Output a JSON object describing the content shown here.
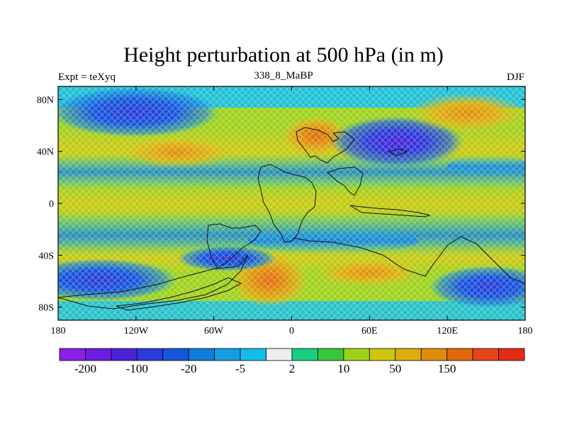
{
  "title": "Height perturbation at 500 hPa (in m)",
  "experiment_label": "Expt = teXyq",
  "case_label": "338_8_MaBP",
  "season_label": "DJF",
  "map": {
    "projection": "cylindrical-equidistant",
    "lon_range": [
      -180,
      180
    ],
    "lat_range": [
      -90,
      90
    ],
    "lon_ticks": [
      {
        "value": -180,
        "label": "180"
      },
      {
        "value": -120,
        "label": "120W"
      },
      {
        "value": -60,
        "label": "60W"
      },
      {
        "value": 0,
        "label": "0"
      },
      {
        "value": 60,
        "label": "60E"
      },
      {
        "value": 120,
        "label": "120E"
      },
      {
        "value": 180,
        "label": "180"
      }
    ],
    "lat_ticks": [
      {
        "value": 80,
        "label": "80N"
      },
      {
        "value": 40,
        "label": "40N"
      },
      {
        "value": 0,
        "label": "0"
      },
      {
        "value": -40,
        "label": "40S"
      },
      {
        "value": -80,
        "label": "80S"
      }
    ],
    "features": [
      {
        "name": "north-pacific-trough",
        "kind": "negative",
        "lon": -140,
        "lat": 62,
        "approx_value": -100
      },
      {
        "name": "asia-trough",
        "kind": "negative",
        "lon": 85,
        "lat": 45,
        "approx_value": -200
      },
      {
        "name": "europe-ridge",
        "kind": "positive",
        "lon": 15,
        "lat": 52,
        "approx_value": 150
      },
      {
        "name": "north-pacific-ridge",
        "kind": "positive",
        "lon": -95,
        "lat": 38,
        "approx_value": 50
      },
      {
        "name": "north-atlantic-ridge",
        "kind": "positive",
        "lon": 150,
        "lat": 65,
        "approx_value": 50
      },
      {
        "name": "south-atlantic-ridge",
        "kind": "positive",
        "lon": -25,
        "lat": -62,
        "approx_value": 50
      },
      {
        "name": "southern-ocean-trough",
        "kind": "negative",
        "lon": -150,
        "lat": -60,
        "approx_value": -100
      },
      {
        "name": "south-indian-trough",
        "kind": "negative",
        "lon": 160,
        "lat": -60,
        "approx_value": -100
      }
    ]
  },
  "colorbar": {
    "colors": [
      "#8a1fe6",
      "#6a1ee0",
      "#4a22d6",
      "#2b3bd8",
      "#1556dc",
      "#0f7ddc",
      "#129ee0",
      "#12bde8",
      "#eeeeee",
      "#18cf82",
      "#3ac63a",
      "#9ed11a",
      "#cfc70d",
      "#ddad0b",
      "#e08c0a",
      "#e06a0a",
      "#e6451a",
      "#e42b16"
    ],
    "labels": [
      {
        "boundary": 1,
        "text": "-200"
      },
      {
        "boundary": 3,
        "text": "-100"
      },
      {
        "boundary": 5,
        "text": "-20"
      },
      {
        "boundary": 7,
        "text": "-5"
      },
      {
        "boundary": 9,
        "text": "2"
      },
      {
        "boundary": 11,
        "text": "10"
      },
      {
        "boundary": 13,
        "text": "50"
      },
      {
        "boundary": 15,
        "text": "150"
      }
    ]
  }
}
